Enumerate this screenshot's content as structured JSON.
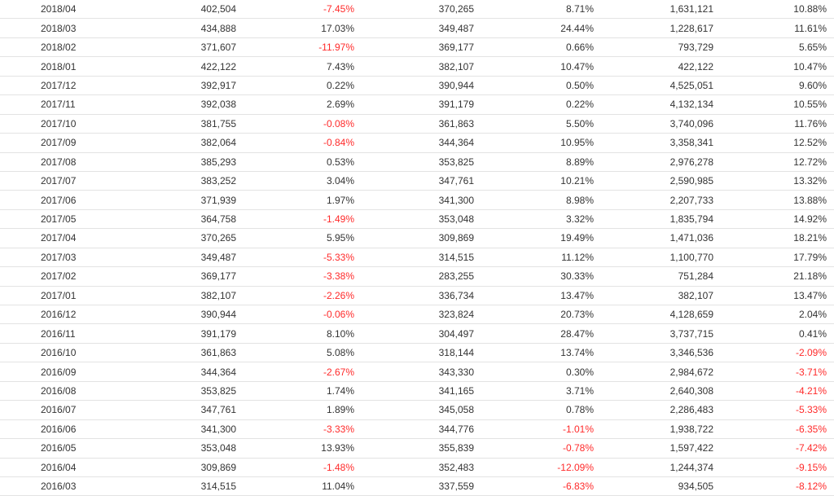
{
  "colors": {
    "negative": "#ff2a2a",
    "text": "#333333",
    "row_border": "#e3e3e3"
  },
  "rows": [
    [
      "2018/04",
      "402,504",
      "-7.45%",
      "370,265",
      "8.71%",
      "1,631,121",
      "10.88%"
    ],
    [
      "2018/03",
      "434,888",
      "17.03%",
      "349,487",
      "24.44%",
      "1,228,617",
      "11.61%"
    ],
    [
      "2018/02",
      "371,607",
      "-11.97%",
      "369,177",
      "0.66%",
      "793,729",
      "5.65%"
    ],
    [
      "2018/01",
      "422,122",
      "7.43%",
      "382,107",
      "10.47%",
      "422,122",
      "10.47%"
    ],
    [
      "2017/12",
      "392,917",
      "0.22%",
      "390,944",
      "0.50%",
      "4,525,051",
      "9.60%"
    ],
    [
      "2017/11",
      "392,038",
      "2.69%",
      "391,179",
      "0.22%",
      "4,132,134",
      "10.55%"
    ],
    [
      "2017/10",
      "381,755",
      "-0.08%",
      "361,863",
      "5.50%",
      "3,740,096",
      "11.76%"
    ],
    [
      "2017/09",
      "382,064",
      "-0.84%",
      "344,364",
      "10.95%",
      "3,358,341",
      "12.52%"
    ],
    [
      "2017/08",
      "385,293",
      "0.53%",
      "353,825",
      "8.89%",
      "2,976,278",
      "12.72%"
    ],
    [
      "2017/07",
      "383,252",
      "3.04%",
      "347,761",
      "10.21%",
      "2,590,985",
      "13.32%"
    ],
    [
      "2017/06",
      "371,939",
      "1.97%",
      "341,300",
      "8.98%",
      "2,207,733",
      "13.88%"
    ],
    [
      "2017/05",
      "364,758",
      "-1.49%",
      "353,048",
      "3.32%",
      "1,835,794",
      "14.92%"
    ],
    [
      "2017/04",
      "370,265",
      "5.95%",
      "309,869",
      "19.49%",
      "1,471,036",
      "18.21%"
    ],
    [
      "2017/03",
      "349,487",
      "-5.33%",
      "314,515",
      "11.12%",
      "1,100,770",
      "17.79%"
    ],
    [
      "2017/02",
      "369,177",
      "-3.38%",
      "283,255",
      "30.33%",
      "751,284",
      "21.18%"
    ],
    [
      "2017/01",
      "382,107",
      "-2.26%",
      "336,734",
      "13.47%",
      "382,107",
      "13.47%"
    ],
    [
      "2016/12",
      "390,944",
      "-0.06%",
      "323,824",
      "20.73%",
      "4,128,659",
      "2.04%"
    ],
    [
      "2016/11",
      "391,179",
      "8.10%",
      "304,497",
      "28.47%",
      "3,737,715",
      "0.41%"
    ],
    [
      "2016/10",
      "361,863",
      "5.08%",
      "318,144",
      "13.74%",
      "3,346,536",
      "-2.09%"
    ],
    [
      "2016/09",
      "344,364",
      "-2.67%",
      "343,330",
      "0.30%",
      "2,984,672",
      "-3.71%"
    ],
    [
      "2016/08",
      "353,825",
      "1.74%",
      "341,165",
      "3.71%",
      "2,640,308",
      "-4.21%"
    ],
    [
      "2016/07",
      "347,761",
      "1.89%",
      "345,058",
      "0.78%",
      "2,286,483",
      "-5.33%"
    ],
    [
      "2016/06",
      "341,300",
      "-3.33%",
      "344,776",
      "-1.01%",
      "1,938,722",
      "-6.35%"
    ],
    [
      "2016/05",
      "353,048",
      "13.93%",
      "355,839",
      "-0.78%",
      "1,597,422",
      "-7.42%"
    ],
    [
      "2016/04",
      "309,869",
      "-1.48%",
      "352,483",
      "-12.09%",
      "1,244,374",
      "-9.15%"
    ],
    [
      "2016/03",
      "314,515",
      "11.04%",
      "337,559",
      "-6.83%",
      "934,505",
      "-8.12%"
    ]
  ]
}
